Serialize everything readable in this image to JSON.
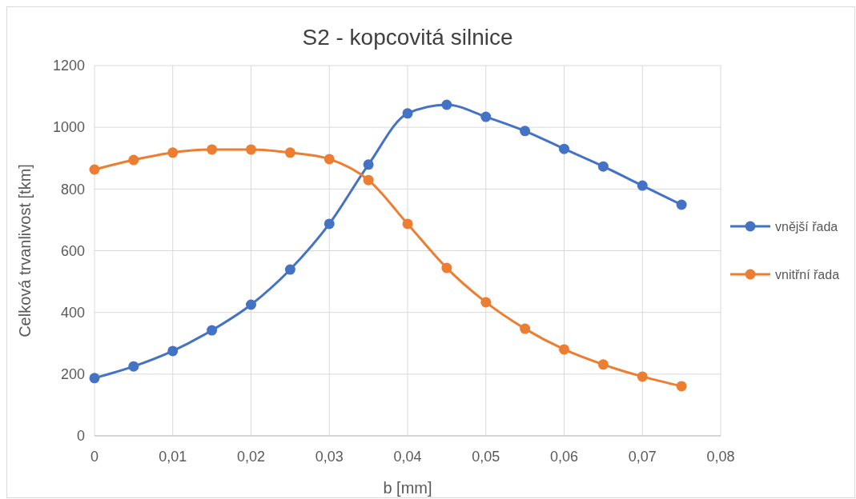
{
  "chart_data": {
    "type": "line",
    "title": "S2 - kopcovitá silnice",
    "xlabel": "b [mm]",
    "ylabel": "Celková trvanlivost [tkm]",
    "x": [
      0,
      0.005,
      0.01,
      0.015,
      0.02,
      0.025,
      0.03,
      0.035,
      0.04,
      0.045,
      0.05,
      0.055,
      0.06,
      0.065,
      0.07,
      0.075
    ],
    "series": [
      {
        "name": "vnější řada",
        "color": "#4472c4",
        "values": [
          187,
          225,
          275,
          342,
          425,
          539,
          687,
          879,
          1045,
          1073,
          1034,
          988,
          930,
          873,
          811,
          749
        ]
      },
      {
        "name": "vnitřní řada",
        "color": "#ed7d31",
        "values": [
          863,
          894,
          918,
          928,
          928,
          918,
          897,
          829,
          687,
          544,
          433,
          347,
          280,
          231,
          192,
          161
        ]
      }
    ],
    "xlim": [
      0,
      0.08
    ],
    "xticks": [
      0,
      {
        "value": 0.01,
        "label": "0,01"
      },
      {
        "value": 0.02,
        "label": "0,02"
      },
      {
        "value": 0.03,
        "label": "0,03"
      },
      {
        "value": 0.04,
        "label": "0,04"
      },
      {
        "value": 0.05,
        "label": "0,05"
      },
      {
        "value": 0.06,
        "label": "0,06"
      },
      {
        "value": 0.07,
        "label": "0,07"
      },
      {
        "value": 0.08,
        "label": "0,08"
      }
    ],
    "ylim": [
      0,
      1200
    ],
    "yticks": [
      0,
      200,
      400,
      600,
      800,
      1000,
      1200
    ],
    "grid": true,
    "legend": "right",
    "marker": "circle",
    "line_style": "solid"
  }
}
